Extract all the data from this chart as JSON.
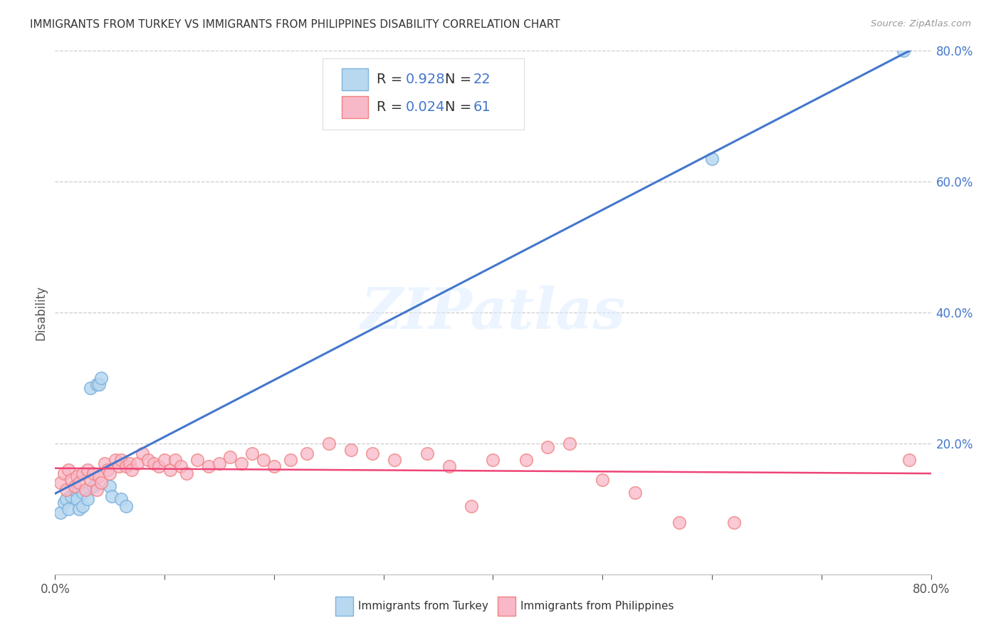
{
  "title": "IMMIGRANTS FROM TURKEY VS IMMIGRANTS FROM PHILIPPINES DISABILITY CORRELATION CHART",
  "source": "Source: ZipAtlas.com",
  "ylabel": "Disability",
  "xlim": [
    0.0,
    0.8
  ],
  "ylim": [
    0.0,
    0.8
  ],
  "xtick_vals": [
    0.0,
    0.1,
    0.2,
    0.3,
    0.4,
    0.5,
    0.6,
    0.7,
    0.8
  ],
  "xtick_labels": [
    "0.0%",
    "",
    "",
    "",
    "",
    "",
    "",
    "",
    "80.0%"
  ],
  "right_ytick_vals": [
    0.2,
    0.4,
    0.6,
    0.8
  ],
  "right_ytick_labels": [
    "20.0%",
    "40.0%",
    "60.0%",
    "80.0%"
  ],
  "turkey_color": "#7EB3E0",
  "turkey_fill": "#B8D8F0",
  "philippines_color": "#F08080",
  "philippines_fill": "#F8B8C8",
  "turkey_R": 0.928,
  "turkey_N": 22,
  "philippines_R": 0.024,
  "philippines_N": 61,
  "turkey_line_color": "#4477CC",
  "philippines_line_color": "#EE4477",
  "watermark_text": "ZIPatlas",
  "legend_label_turkey": "Immigrants from Turkey",
  "legend_label_philippines": "Immigrants from Philippines",
  "background_color": "#FFFFFF",
  "grid_color": "#CCCCCC",
  "turkey_x": [
    0.005,
    0.008,
    0.01,
    0.012,
    0.015,
    0.018,
    0.02,
    0.022,
    0.025,
    0.025,
    0.03,
    0.032,
    0.035,
    0.038,
    0.04,
    0.042,
    0.05,
    0.052,
    0.06,
    0.065,
    0.6,
    0.775
  ],
  "turkey_y": [
    0.095,
    0.11,
    0.115,
    0.1,
    0.12,
    0.13,
    0.115,
    0.1,
    0.125,
    0.105,
    0.115,
    0.285,
    0.135,
    0.29,
    0.29,
    0.3,
    0.135,
    0.12,
    0.115,
    0.105,
    0.635,
    0.8
  ],
  "philippines_x": [
    0.005,
    0.008,
    0.01,
    0.012,
    0.015,
    0.018,
    0.02,
    0.022,
    0.025,
    0.028,
    0.03,
    0.032,
    0.035,
    0.038,
    0.04,
    0.042,
    0.045,
    0.048,
    0.05,
    0.055,
    0.058,
    0.06,
    0.065,
    0.068,
    0.07,
    0.075,
    0.08,
    0.085,
    0.09,
    0.095,
    0.1,
    0.105,
    0.11,
    0.115,
    0.12,
    0.13,
    0.14,
    0.15,
    0.16,
    0.17,
    0.18,
    0.19,
    0.2,
    0.215,
    0.23,
    0.25,
    0.27,
    0.29,
    0.31,
    0.34,
    0.36,
    0.38,
    0.4,
    0.43,
    0.45,
    0.47,
    0.5,
    0.53,
    0.57,
    0.62,
    0.78
  ],
  "philippines_y": [
    0.14,
    0.155,
    0.13,
    0.16,
    0.145,
    0.135,
    0.15,
    0.14,
    0.155,
    0.13,
    0.16,
    0.145,
    0.155,
    0.13,
    0.15,
    0.14,
    0.17,
    0.16,
    0.155,
    0.175,
    0.165,
    0.175,
    0.165,
    0.17,
    0.16,
    0.17,
    0.185,
    0.175,
    0.17,
    0.165,
    0.175,
    0.16,
    0.175,
    0.165,
    0.155,
    0.175,
    0.165,
    0.17,
    0.18,
    0.17,
    0.185,
    0.175,
    0.165,
    0.175,
    0.185,
    0.2,
    0.19,
    0.185,
    0.175,
    0.185,
    0.165,
    0.105,
    0.175,
    0.175,
    0.195,
    0.2,
    0.145,
    0.125,
    0.08,
    0.08,
    0.175
  ]
}
